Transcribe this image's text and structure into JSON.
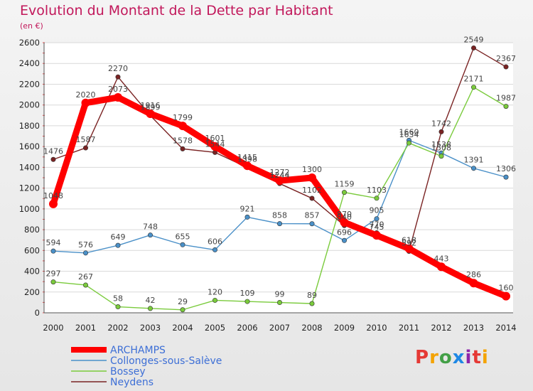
{
  "title": "Evolution du Montant de la Dette par Habitant",
  "unit": "(en €)",
  "logo": "Proxiti",
  "chart_data": {
    "type": "line",
    "title": "Evolution du Montant de la Dette par Habitant",
    "subtitle": "(en €)",
    "xlabel": "",
    "ylabel": "",
    "x": [
      "2000",
      "2001",
      "2002",
      "2003",
      "2004",
      "2005",
      "2006",
      "2007",
      "2008",
      "2009",
      "2010",
      "2011",
      "2012",
      "2013",
      "2014"
    ],
    "ylim": [
      0,
      2600
    ],
    "yticks": [
      0,
      200,
      400,
      600,
      800,
      1000,
      1200,
      1400,
      1600,
      1800,
      2000,
      2200,
      2400,
      2600
    ],
    "grid": true,
    "legend": "bottom-left",
    "series": [
      {
        "name": "ARCHAMPS",
        "color": "#ff0000",
        "values": [
          1048,
          2020,
          2073,
          1916,
          1799,
          1601,
          1415,
          1272,
          1300,
          870,
          745,
          618,
          443,
          286,
          160
        ]
      },
      {
        "name": "Collonges-sous-Salève",
        "color": "#4a90c8",
        "values": [
          594,
          576,
          649,
          748,
          655,
          606,
          921,
          858,
          857,
          696,
          905,
          1660,
          1538,
          1391,
          1306
        ]
      },
      {
        "name": "Bossey",
        "color": "#7acb3c",
        "values": [
          297,
          267,
          58,
          42,
          29,
          120,
          109,
          99,
          89,
          1159,
          1103,
          1634,
          1508,
          2171,
          1987
        ]
      },
      {
        "name": "Neydens",
        "color": "#7a2323",
        "values": [
          1476,
          1587,
          2270,
          1899,
          1578,
          1544,
          1398,
          1244,
          1102,
          840,
          770,
          592,
          1742,
          2549,
          2367
        ]
      }
    ]
  }
}
